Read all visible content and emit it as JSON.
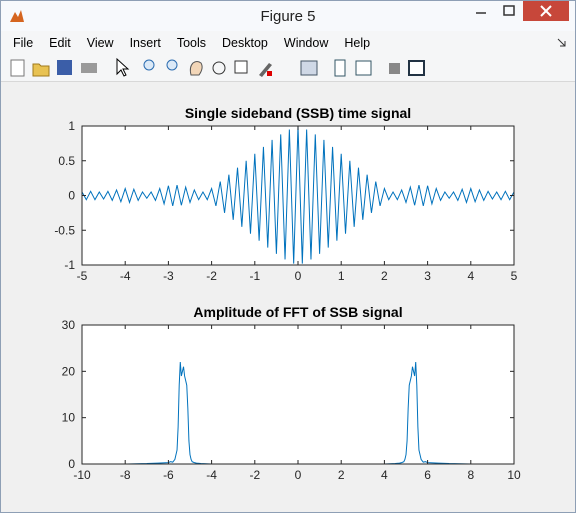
{
  "window": {
    "title": "Figure 5",
    "menu": [
      "File",
      "Edit",
      "View",
      "Insert",
      "Tools",
      "Desktop",
      "Window",
      "Help"
    ]
  },
  "chart_data": [
    {
      "type": "line",
      "title": "Single sideband (SSB) time signal",
      "color": "#0072bd",
      "x": [
        -5,
        -4.9,
        -4.8,
        -4.7,
        -4.6,
        -4.5,
        -4.4,
        -4.3,
        -4.2,
        -4.1,
        -4,
        -3.9,
        -3.8,
        -3.7,
        -3.6,
        -3.5,
        -3.4,
        -3.3,
        -3.2,
        -3.1,
        -3,
        -2.9,
        -2.8,
        -2.7,
        -2.6,
        -2.5,
        -2.4,
        -2.3,
        -2.2,
        -2.1,
        -2,
        -1.9,
        -1.8,
        -1.7,
        -1.6,
        -1.5,
        -1.4,
        -1.3,
        -1.2,
        -1.1,
        -1,
        -0.9,
        -0.8,
        -0.7,
        -0.6,
        -0.5,
        -0.4,
        -0.3,
        -0.2,
        -0.1,
        0,
        0.1,
        0.2,
        0.3,
        0.4,
        0.5,
        0.6,
        0.7,
        0.8,
        0.9,
        1,
        1.1,
        1.2,
        1.3,
        1.4,
        1.5,
        1.6,
        1.7,
        1.8,
        1.9,
        2,
        2.1,
        2.2,
        2.3,
        2.4,
        2.5,
        2.6,
        2.7,
        2.8,
        2.9,
        3,
        3.1,
        3.2,
        3.3,
        3.4,
        3.5,
        3.6,
        3.7,
        3.8,
        3.9,
        4,
        4.1,
        4.2,
        4.3,
        4.4,
        4.5,
        4.6,
        4.7,
        4.8,
        4.9,
        5
      ],
      "values": [
        0.05,
        -0.06,
        0.06,
        -0.06,
        0.05,
        -0.05,
        0.06,
        -0.07,
        0.08,
        -0.09,
        0.1,
        -0.1,
        0.09,
        -0.07,
        0.05,
        -0.04,
        0.05,
        -0.07,
        0.1,
        -0.12,
        0.14,
        -0.15,
        0.15,
        -0.14,
        0.12,
        -0.1,
        0.08,
        -0.06,
        0.05,
        -0.06,
        0.1,
        -0.15,
        0.2,
        -0.25,
        0.3,
        -0.35,
        0.4,
        -0.45,
        0.5,
        -0.55,
        0.6,
        -0.65,
        0.7,
        -0.75,
        0.8,
        -0.84,
        0.88,
        -0.92,
        0.95,
        -0.98,
        1,
        -0.98,
        0.95,
        -0.92,
        0.88,
        -0.84,
        0.8,
        -0.75,
        0.7,
        -0.65,
        0.6,
        -0.55,
        0.5,
        -0.45,
        0.4,
        -0.35,
        0.3,
        -0.25,
        0.2,
        -0.15,
        0.1,
        -0.06,
        0.05,
        -0.06,
        0.08,
        -0.1,
        0.12,
        -0.14,
        0.15,
        -0.15,
        0.14,
        -0.12,
        0.1,
        -0.07,
        0.05,
        -0.04,
        0.05,
        -0.07,
        0.09,
        -0.1,
        0.1,
        -0.09,
        0.08,
        -0.07,
        0.06,
        -0.05,
        0.05,
        -0.06,
        0.06,
        -0.06,
        0.05
      ],
      "xlim": [
        -5,
        5
      ],
      "xticks": [
        -5,
        -4,
        -3,
        -2,
        -1,
        0,
        1,
        2,
        3,
        4,
        5
      ],
      "ylim": [
        -1,
        1
      ],
      "yticks": [
        -1,
        -0.5,
        0,
        0.5,
        1
      ]
    },
    {
      "type": "line",
      "title": "Amplitude of FFT of SSB signal",
      "color": "#0072bd",
      "x": [
        -10,
        -9,
        -8,
        -7,
        -6.5,
        -6,
        -5.9,
        -5.8,
        -5.7,
        -5.6,
        -5.55,
        -5.5,
        -5.45,
        -5.4,
        -5.35,
        -5.3,
        -5.25,
        -5.2,
        -5.15,
        -5.1,
        -5.05,
        -5,
        -4.95,
        -4.9,
        -4.8,
        -4.7,
        -4.5,
        -4,
        -3,
        -2,
        -1,
        0,
        1,
        2,
        3,
        4,
        4.5,
        4.7,
        4.8,
        4.9,
        4.95,
        5,
        5.05,
        5.1,
        5.15,
        5.2,
        5.25,
        5.3,
        5.35,
        5.4,
        5.45,
        5.5,
        5.55,
        5.6,
        5.7,
        5.8,
        5.9,
        6,
        6.5,
        7,
        8,
        9,
        10
      ],
      "values": [
        0,
        0,
        0,
        0.1,
        0.2,
        0.3,
        0.5,
        0.4,
        1,
        3,
        8,
        17,
        22,
        19,
        20,
        21,
        19,
        18,
        17,
        12,
        5,
        2,
        1,
        0.5,
        0.3,
        0.2,
        0.1,
        0,
        0,
        0,
        0,
        0,
        0,
        0,
        0,
        0,
        0.1,
        0.2,
        0.3,
        0.5,
        1,
        2,
        5,
        12,
        17,
        18,
        19,
        21,
        20,
        19,
        22,
        17,
        8,
        3,
        1,
        0.4,
        0.5,
        0.3,
        0.2,
        0.1,
        0,
        0,
        0
      ],
      "xlim": [
        -10,
        10
      ],
      "xticks": [
        -10,
        -8,
        -6,
        -4,
        -2,
        0,
        2,
        4,
        6,
        8,
        10
      ],
      "ylim": [
        0,
        30
      ],
      "yticks": [
        0,
        10,
        20,
        30
      ]
    }
  ]
}
